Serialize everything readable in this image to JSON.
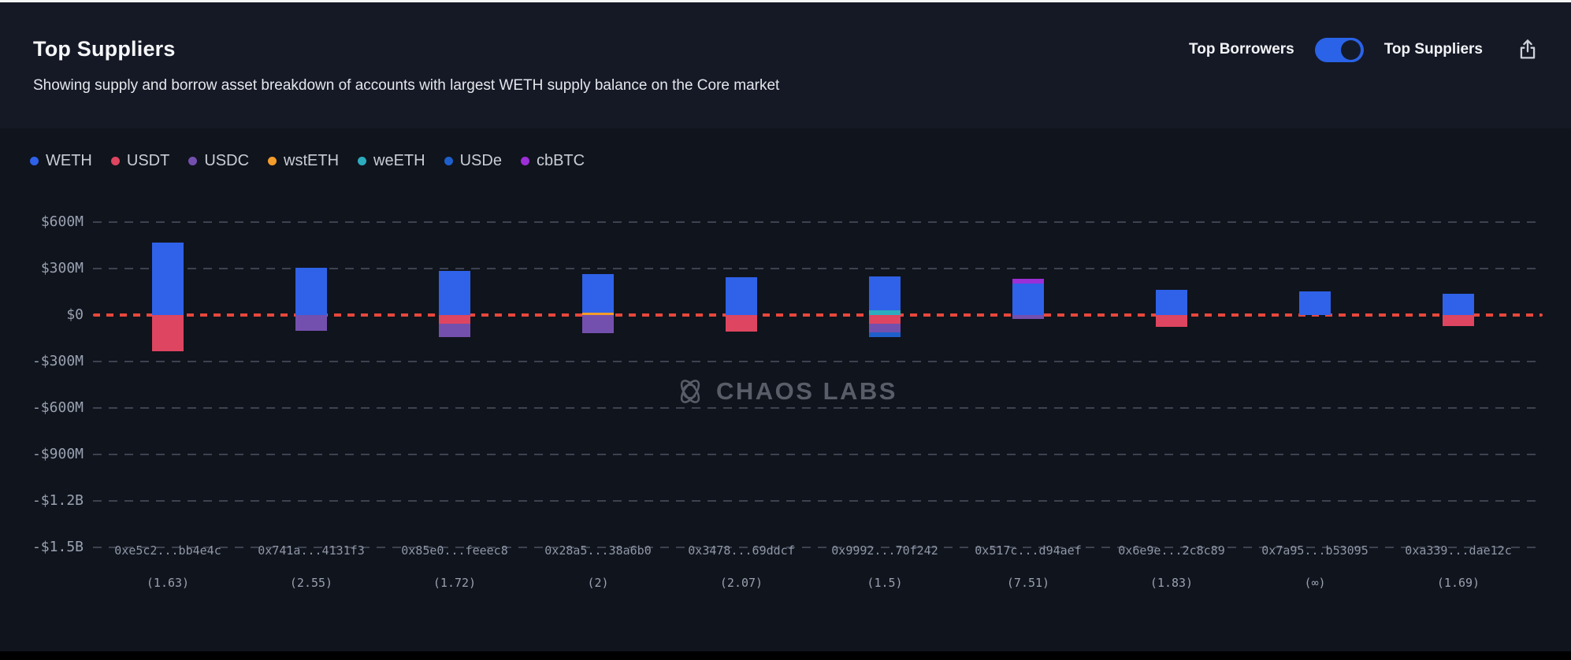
{
  "header": {
    "title": "Top Suppliers",
    "subtitle": "Showing supply and borrow asset breakdown of accounts with largest WETH supply balance on the Core market",
    "toggle": {
      "left_label": "Top Borrowers",
      "right_label": "Top Suppliers",
      "state": "right",
      "active_color": "#2a63e8"
    }
  },
  "legend": {
    "items": [
      {
        "label": "WETH",
        "color": "#2f62e8"
      },
      {
        "label": "USDT",
        "color": "#de4560"
      },
      {
        "label": "USDC",
        "color": "#7450ae"
      },
      {
        "label": "wstETH",
        "color": "#f49d2c"
      },
      {
        "label": "weETH",
        "color": "#2cacbe"
      },
      {
        "label": "USDe",
        "color": "#1f5fcb"
      },
      {
        "label": "cbBTC",
        "color": "#9c2fd6"
      }
    ]
  },
  "watermark": {
    "text": "CHAOS LABS"
  },
  "chart_data": {
    "type": "bar",
    "stacked": true,
    "units": "$M",
    "title": "Top Suppliers",
    "grid": true,
    "legend_position": "top-left",
    "ylim": [
      -1500,
      600
    ],
    "zero_line_color": "#e8473c",
    "asset_colors": {
      "WETH": "#2f62e8",
      "USDT": "#de4560",
      "USDC": "#7450ae",
      "wstETH": "#f49d2c",
      "weETH": "#2cacbe",
      "USDe": "#1f5fcb",
      "cbBTC": "#9c2fd6"
    },
    "y_ticks": [
      {
        "label": "$600M",
        "value": 600
      },
      {
        "label": "$300M",
        "value": 300
      },
      {
        "label": "$0",
        "value": 0
      },
      {
        "label": "-$300M",
        "value": -300
      },
      {
        "label": "-$600M",
        "value": -600
      },
      {
        "label": "-$900M",
        "value": -900
      },
      {
        "label": "-$1.2B",
        "value": -1200
      },
      {
        "label": "-$1.5B",
        "value": -1500
      }
    ],
    "bars": [
      {
        "address": "0xe5c2...bb4e4c",
        "health": "(1.63)",
        "segments": [
          {
            "asset": "WETH",
            "value": 470
          },
          {
            "asset": "USDT",
            "value": -235
          }
        ]
      },
      {
        "address": "0x741a...4131f3",
        "health": "(2.55)",
        "segments": [
          {
            "asset": "WETH",
            "value": 305
          },
          {
            "asset": "USDC",
            "value": -100
          }
        ]
      },
      {
        "address": "0x85e0...feeec8",
        "health": "(1.72)",
        "segments": [
          {
            "asset": "WETH",
            "value": 285
          },
          {
            "asset": "USDT",
            "value": -55
          },
          {
            "asset": "USDC",
            "value": -85
          }
        ]
      },
      {
        "address": "0x28a5...38a6b0",
        "health": "(2)",
        "segments": [
          {
            "asset": "wstETH",
            "value": 15
          },
          {
            "asset": "WETH",
            "value": 250
          },
          {
            "asset": "USDC",
            "value": -115
          }
        ]
      },
      {
        "address": "0x3478...69ddcf",
        "health": "(2.07)",
        "segments": [
          {
            "asset": "WETH",
            "value": 245
          },
          {
            "asset": "USDT",
            "value": -105
          }
        ]
      },
      {
        "address": "0x9992...70f242",
        "health": "(1.5)",
        "segments": [
          {
            "asset": "weETH",
            "value": 32
          },
          {
            "asset": "WETH",
            "value": 215
          },
          {
            "asset": "USDT",
            "value": -58
          },
          {
            "asset": "USDC",
            "value": -52
          },
          {
            "asset": "USDe",
            "value": -30
          }
        ]
      },
      {
        "address": "0x517c...d94aef",
        "health": "(7.51)",
        "segments": [
          {
            "asset": "WETH",
            "value": 205
          },
          {
            "asset": "cbBTC",
            "value": 30
          },
          {
            "asset": "USDC",
            "value": -25
          }
        ]
      },
      {
        "address": "0x6e9e...2c8c89",
        "health": "(1.83)",
        "segments": [
          {
            "asset": "WETH",
            "value": 165
          },
          {
            "asset": "USDT",
            "value": -78
          }
        ]
      },
      {
        "address": "0x7a95...b53095",
        "health": "(∞)",
        "segments": [
          {
            "asset": "WETH",
            "value": 152
          }
        ]
      },
      {
        "address": "0xa339...dae12c",
        "health": "(1.69)",
        "segments": [
          {
            "asset": "WETH",
            "value": 135
          },
          {
            "asset": "USDT",
            "value": -72
          }
        ]
      }
    ]
  }
}
